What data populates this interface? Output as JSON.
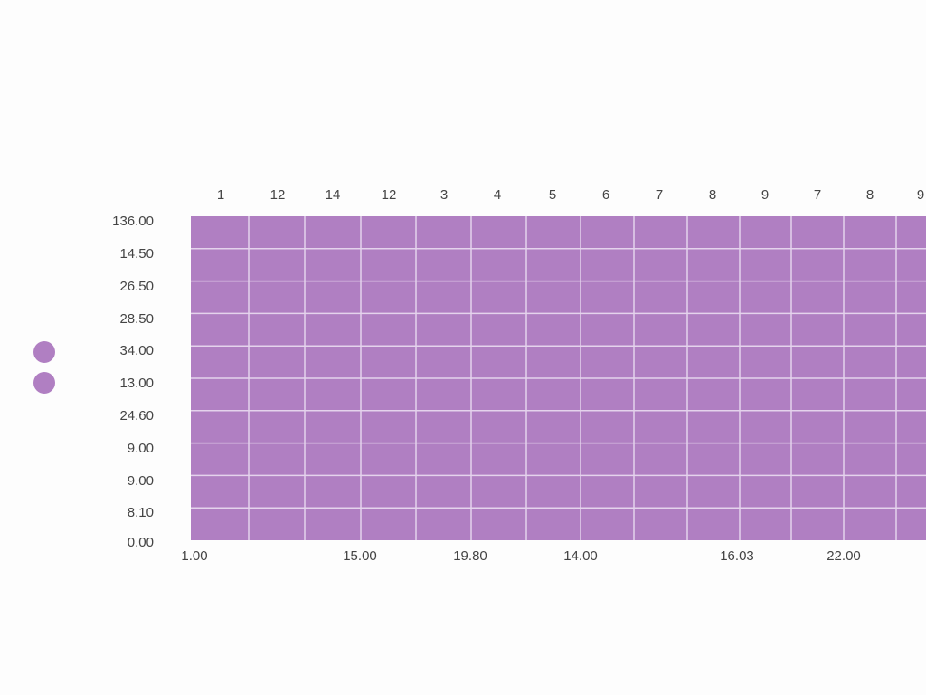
{
  "header_labels": [
    "1",
    "12",
    "14",
    "12",
    "3",
    "4",
    "5",
    "6",
    "7",
    "8",
    "9",
    "7",
    "8",
    "9"
  ],
  "row_labels": [
    "136.00",
    "14.50",
    "26.50",
    "28.50",
    "34.00",
    "13.00",
    "24.60",
    "9.00",
    "9.00",
    "8.10",
    "0.00"
  ],
  "footer_labels": [
    "1.00",
    "15.00",
    "19.80",
    "14.00",
    "16.03",
    "22.00"
  ]
}
